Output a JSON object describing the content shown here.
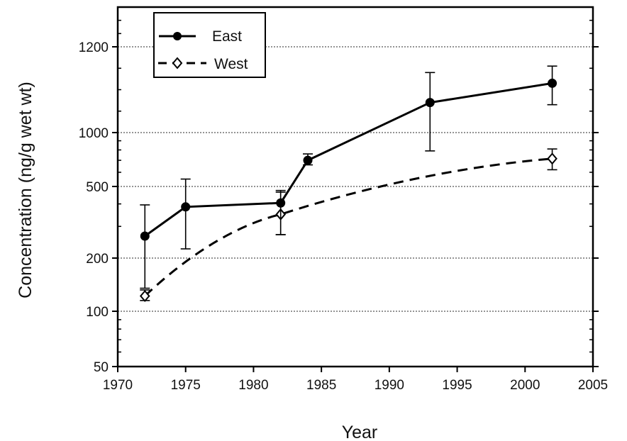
{
  "chart_data": {
    "type": "line",
    "xlabel": "Year",
    "ylabel": "Concentration (ng/g wet wt)",
    "xlim": [
      1970,
      2005
    ],
    "x_ticks": [
      1970,
      1975,
      1980,
      1985,
      1990,
      1995,
      2000,
      2005
    ],
    "y_ticks": [
      50,
      100,
      200,
      500,
      1000,
      1200
    ],
    "y_ticks_labels": [
      "50",
      "100",
      "200",
      "500",
      "1000",
      "1200"
    ],
    "y_axis_top_value": 1350,
    "y_scale": "piecewise (log-like lower segment 50–1000, linear segment 1000–1200)",
    "gridlines_at": [
      100,
      200,
      500,
      1000,
      1200
    ],
    "grid_style": "dotted horizontal",
    "legend_position": "top-left",
    "series": [
      {
        "name": "East",
        "style": "solid line, filled circle markers",
        "x": [
          1972,
          1975,
          1982,
          1984,
          1993,
          2002
        ],
        "y": [
          265,
          385,
          405,
          700,
          1070,
          1115
        ],
        "err_low": [
          135,
          225,
          270,
          660,
          790,
          1065
        ],
        "err_high": [
          395,
          550,
          475,
          760,
          1140,
          1155
        ]
      },
      {
        "name": "West",
        "style": "dashed line, open diamond markers",
        "x": [
          1972,
          1982,
          2002
        ],
        "y": [
          122,
          350,
          715
        ],
        "err_low": [
          115,
          270,
          620
        ],
        "err_high": [
          132,
          465,
          810
        ]
      }
    ]
  }
}
